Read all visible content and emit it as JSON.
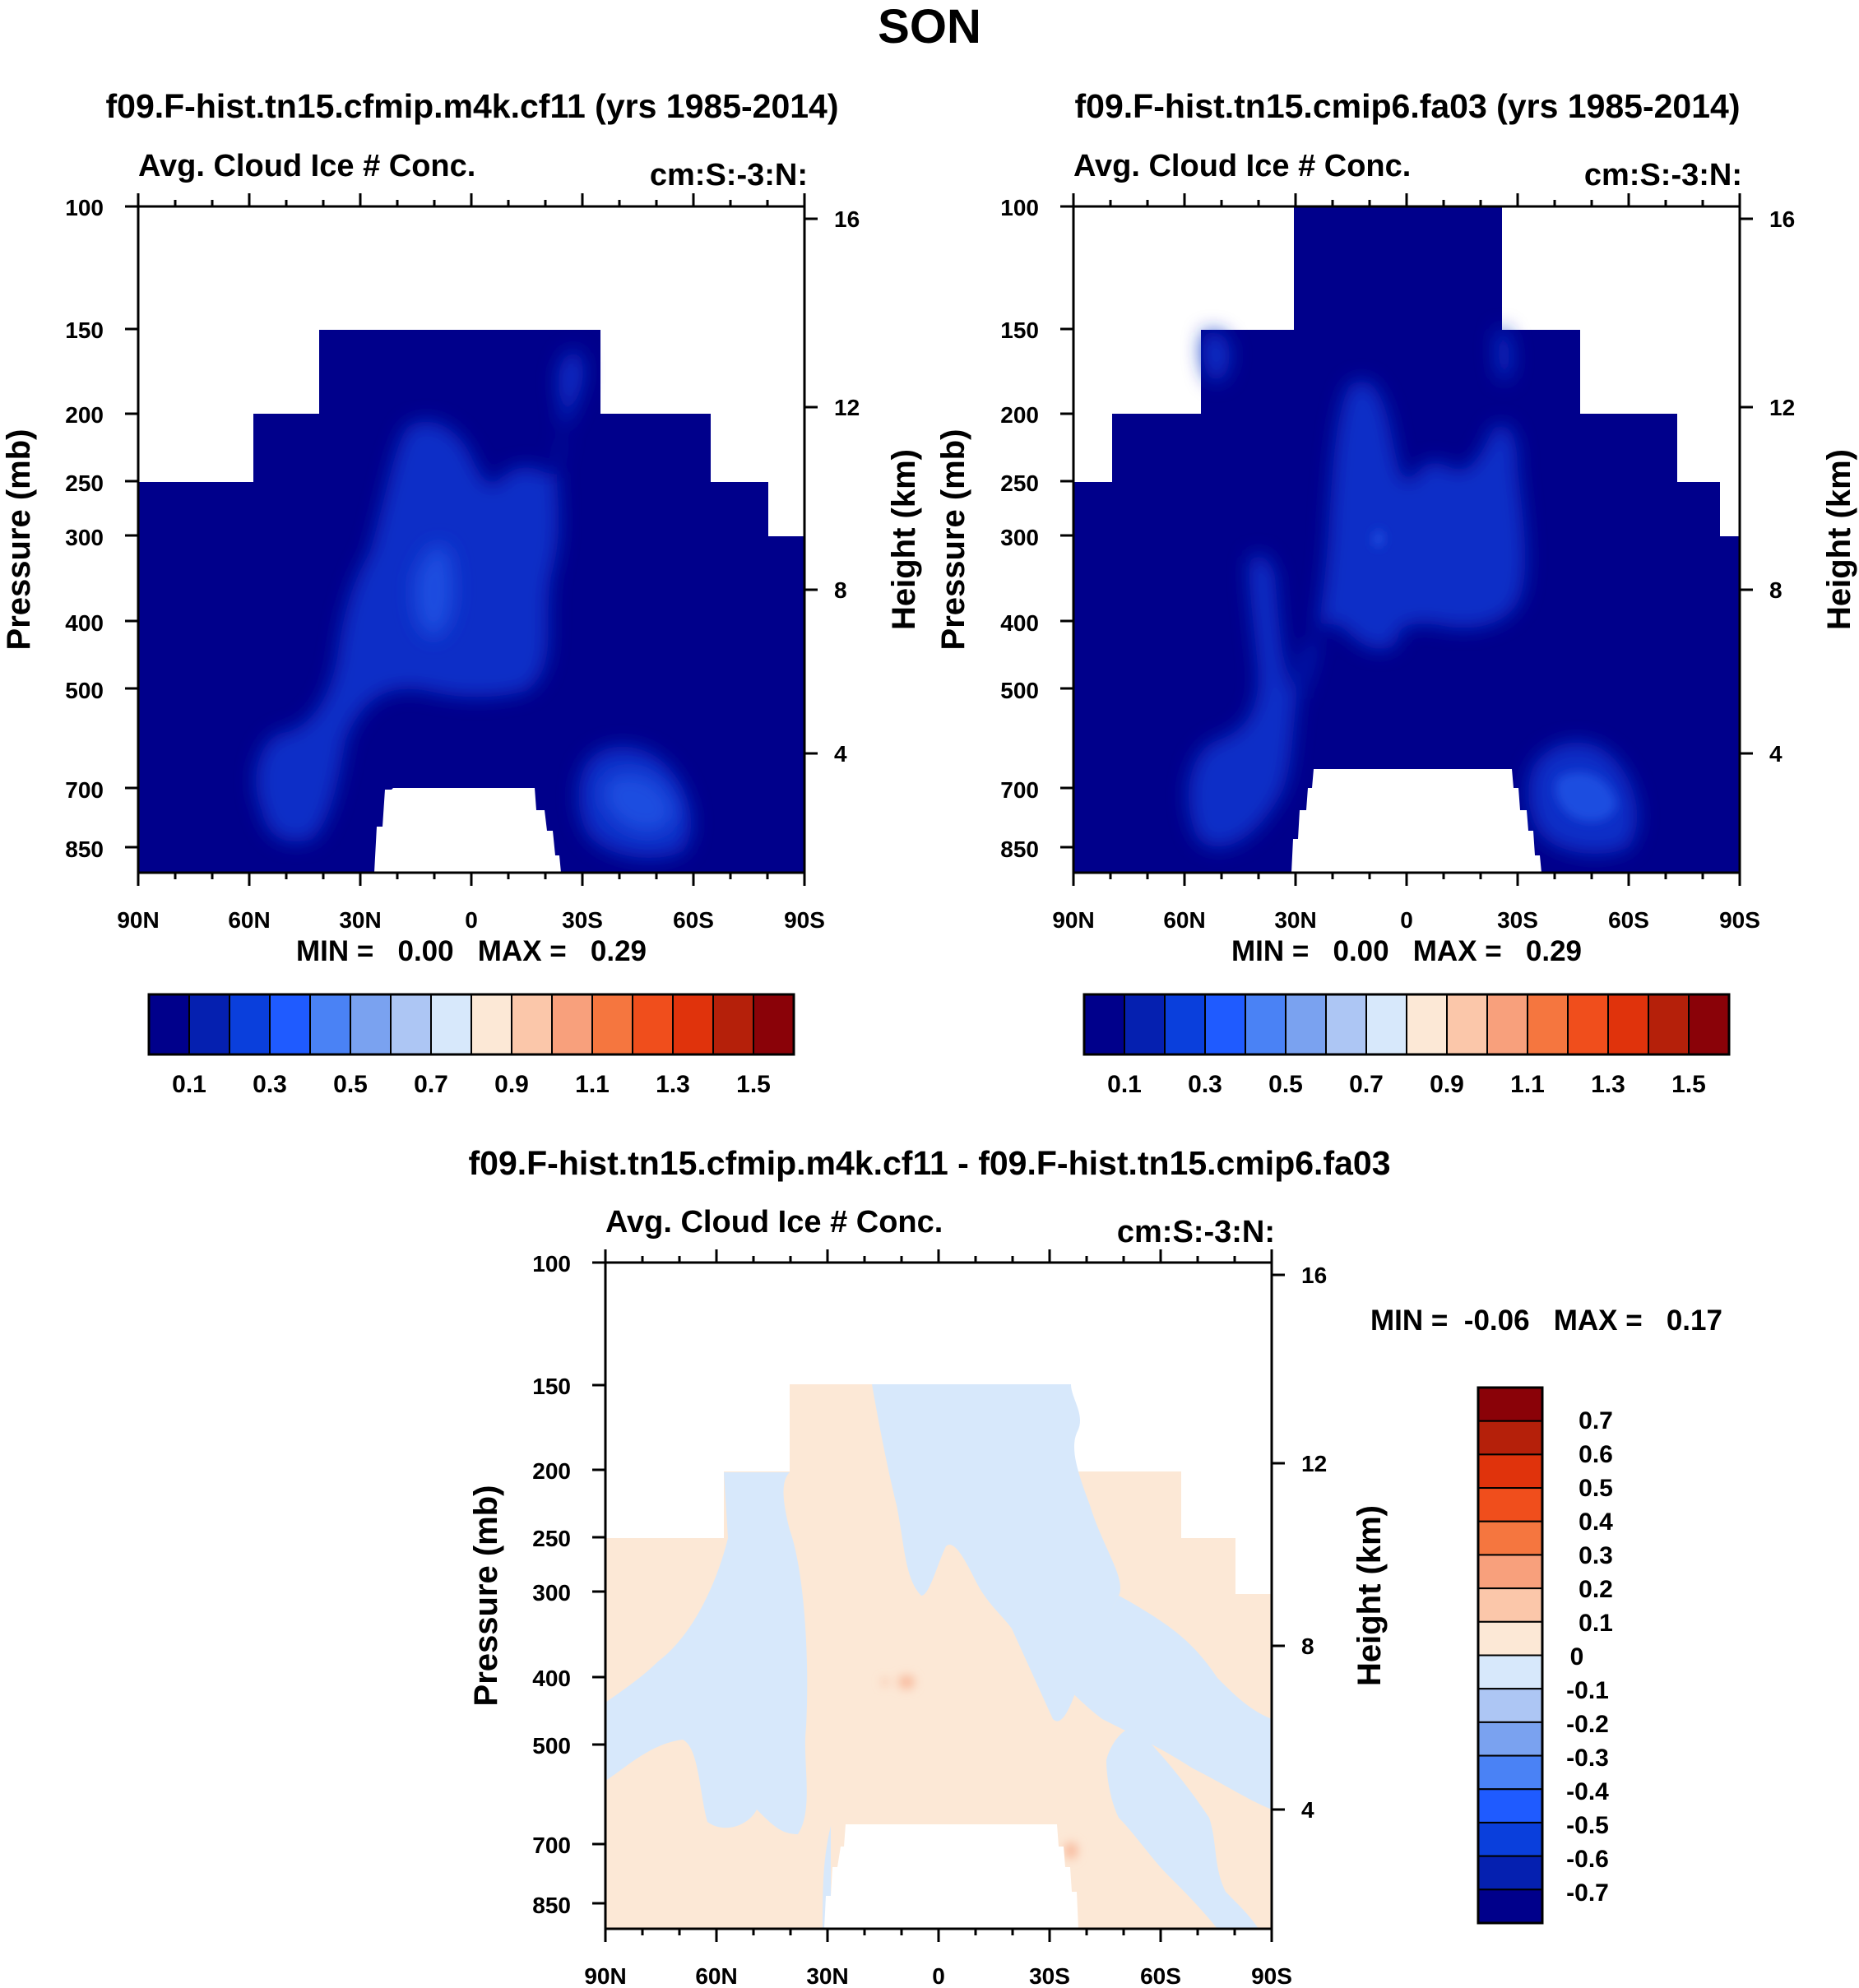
{
  "figure": {
    "title": "SON"
  },
  "chart_data": [
    {
      "type": "contour",
      "title": "f09.F-hist.tn15.cfmip.m4k.cf11 (yrs 1985-2014)",
      "subtitle_left": "Avg. Cloud Ice # Conc.",
      "subtitle_right": "cm:S:-3:N:",
      "ylabel": "Pressure (mb)",
      "ylabel_right": "Height (km)",
      "x_ticks": [
        "90N",
        "60N",
        "30N",
        "0",
        "30S",
        "60S",
        "90S"
      ],
      "y_ticks": [
        "100",
        "150",
        "200",
        "250",
        "300",
        "400",
        "500",
        "700",
        "850"
      ],
      "y2_ticks": [
        "16",
        "12",
        "8",
        "4"
      ],
      "min_max_text": "MIN =   0.00   MAX =   0.29",
      "min": 0.0,
      "max": 0.29,
      "colorbar_labels": [
        "0.1",
        "0.3",
        "0.5",
        "0.7",
        "0.9",
        "1.1",
        "1.3",
        "1.5"
      ],
      "colorbar_colors": [
        "#00008b",
        "#0520b0",
        "#0a3fdc",
        "#1f5bff",
        "#4a82f5",
        "#7aa2f0",
        "#adc6f4",
        "#d7e8fb",
        "#fce8d6",
        "#fbc7aa",
        "#f8a07c",
        "#f5763f",
        "#f04e1c",
        "#e0330c",
        "#b5200a",
        "#8a0208"
      ]
    },
    {
      "type": "contour",
      "title": "f09.F-hist.tn15.cmip6.fa03 (yrs 1985-2014)",
      "subtitle_left": "Avg. Cloud Ice # Conc.",
      "subtitle_right": "cm:S:-3:N:",
      "ylabel": "Pressure (mb)",
      "ylabel_right": "Height (km)",
      "x_ticks": [
        "90N",
        "60N",
        "30N",
        "0",
        "30S",
        "60S",
        "90S"
      ],
      "y_ticks": [
        "100",
        "150",
        "200",
        "250",
        "300",
        "400",
        "500",
        "700",
        "850"
      ],
      "y2_ticks": [
        "16",
        "12",
        "8",
        "4"
      ],
      "min_max_text": "MIN =   0.00   MAX =   0.29",
      "min": 0.0,
      "max": 0.29,
      "colorbar_labels": [
        "0.1",
        "0.3",
        "0.5",
        "0.7",
        "0.9",
        "1.1",
        "1.3",
        "1.5"
      ],
      "colorbar_colors": [
        "#00008b",
        "#0520b0",
        "#0a3fdc",
        "#1f5bff",
        "#4a82f5",
        "#7aa2f0",
        "#adc6f4",
        "#d7e8fb",
        "#fce8d6",
        "#fbc7aa",
        "#f8a07c",
        "#f5763f",
        "#f04e1c",
        "#e0330c",
        "#b5200a",
        "#8a0208"
      ]
    },
    {
      "type": "contour",
      "title": "f09.F-hist.tn15.cfmip.m4k.cf11 - f09.F-hist.tn15.cmip6.fa03",
      "subtitle_left": "Avg. Cloud Ice # Conc.",
      "subtitle_right": "cm:S:-3:N:",
      "ylabel": "Pressure (mb)",
      "ylabel_right": "Height (km)",
      "x_ticks": [
        "90N",
        "60N",
        "30N",
        "0",
        "30S",
        "60S",
        "90S"
      ],
      "y_ticks": [
        "100",
        "150",
        "200",
        "250",
        "300",
        "400",
        "500",
        "700",
        "850"
      ],
      "y2_ticks": [
        "16",
        "12",
        "8",
        "4"
      ],
      "min_max_text": "MIN =  -0.06   MAX =   0.17",
      "min": -0.06,
      "max": 0.17,
      "colorbar_labels": [
        "0.7",
        "0.6",
        "0.5",
        "0.4",
        "0.3",
        "0.2",
        "0.1",
        "0",
        "-0.1",
        "-0.2",
        "-0.3",
        "-0.4",
        "-0.5",
        "-0.6",
        "-0.7"
      ],
      "colorbar_colors": [
        "#8a0208",
        "#b5200a",
        "#e0330c",
        "#f04e1c",
        "#f5763f",
        "#f8a07c",
        "#fbc7aa",
        "#fce8d6",
        "#d7e8fb",
        "#adc6f4",
        "#7aa2f0",
        "#4a82f5",
        "#1f5bff",
        "#0a3fdc",
        "#0520b0",
        "#00008b"
      ]
    }
  ]
}
